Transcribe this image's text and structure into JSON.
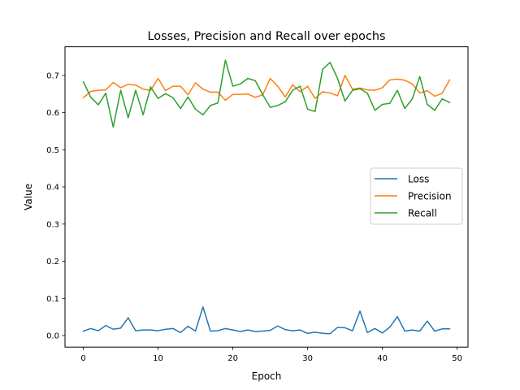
{
  "chart_data": {
    "type": "line",
    "title": "Losses, Precision and Recall over epochs",
    "xlabel": "Epoch",
    "ylabel": "Value",
    "xlim": [
      -2.45,
      51.45
    ],
    "ylim": [
      -0.031,
      0.777
    ],
    "xticks": [
      0,
      10,
      20,
      30,
      40,
      50
    ],
    "yticks": [
      0.0,
      0.1,
      0.2,
      0.3,
      0.4,
      0.5,
      0.6,
      0.7
    ],
    "xtick_labels": [
      "0",
      "10",
      "20",
      "30",
      "40",
      "50"
    ],
    "ytick_labels": [
      "0.0",
      "0.1",
      "0.2",
      "0.3",
      "0.4",
      "0.5",
      "0.6",
      "0.7"
    ],
    "grid": false,
    "legend_position": "center-right",
    "x": [
      0,
      1,
      2,
      3,
      4,
      5,
      6,
      7,
      8,
      9,
      10,
      11,
      12,
      13,
      14,
      15,
      16,
      17,
      18,
      19,
      20,
      21,
      22,
      23,
      24,
      25,
      26,
      27,
      28,
      29,
      30,
      31,
      32,
      33,
      34,
      35,
      36,
      37,
      38,
      39,
      40,
      41,
      42,
      43,
      44,
      45,
      46,
      47,
      48,
      49
    ],
    "series": [
      {
        "name": "Loss",
        "color": "#1f77b4",
        "values": [
          0.012,
          0.019,
          0.013,
          0.027,
          0.017,
          0.02,
          0.048,
          0.013,
          0.015,
          0.015,
          0.013,
          0.017,
          0.019,
          0.008,
          0.025,
          0.012,
          0.077,
          0.012,
          0.013,
          0.019,
          0.015,
          0.011,
          0.015,
          0.011,
          0.012,
          0.014,
          0.026,
          0.016,
          0.013,
          0.015,
          0.006,
          0.009,
          0.006,
          0.005,
          0.022,
          0.021,
          0.013,
          0.066,
          0.008,
          0.019,
          0.007,
          0.023,
          0.051,
          0.012,
          0.015,
          0.012,
          0.039,
          0.012,
          0.018,
          0.018
        ]
      },
      {
        "name": "Precision",
        "color": "#ff7f0e",
        "values": [
          0.64,
          0.657,
          0.66,
          0.661,
          0.681,
          0.667,
          0.676,
          0.674,
          0.663,
          0.66,
          0.692,
          0.659,
          0.671,
          0.671,
          0.648,
          0.68,
          0.663,
          0.655,
          0.655,
          0.633,
          0.649,
          0.649,
          0.65,
          0.641,
          0.648,
          0.692,
          0.671,
          0.642,
          0.675,
          0.656,
          0.671,
          0.638,
          0.656,
          0.653,
          0.645,
          0.7,
          0.663,
          0.666,
          0.661,
          0.66,
          0.667,
          0.688,
          0.69,
          0.687,
          0.677,
          0.653,
          0.659,
          0.644,
          0.652,
          0.688
        ]
      },
      {
        "name": "Recall",
        "color": "#2ca02c",
        "values": [
          0.683,
          0.641,
          0.621,
          0.652,
          0.561,
          0.66,
          0.586,
          0.66,
          0.594,
          0.669,
          0.638,
          0.651,
          0.64,
          0.611,
          0.642,
          0.609,
          0.594,
          0.619,
          0.626,
          0.741,
          0.671,
          0.677,
          0.692,
          0.686,
          0.648,
          0.614,
          0.619,
          0.629,
          0.66,
          0.671,
          0.609,
          0.603,
          0.716,
          0.735,
          0.692,
          0.631,
          0.66,
          0.664,
          0.652,
          0.606,
          0.622,
          0.625,
          0.66,
          0.611,
          0.637,
          0.697,
          0.622,
          0.606,
          0.637,
          0.627
        ]
      }
    ]
  }
}
